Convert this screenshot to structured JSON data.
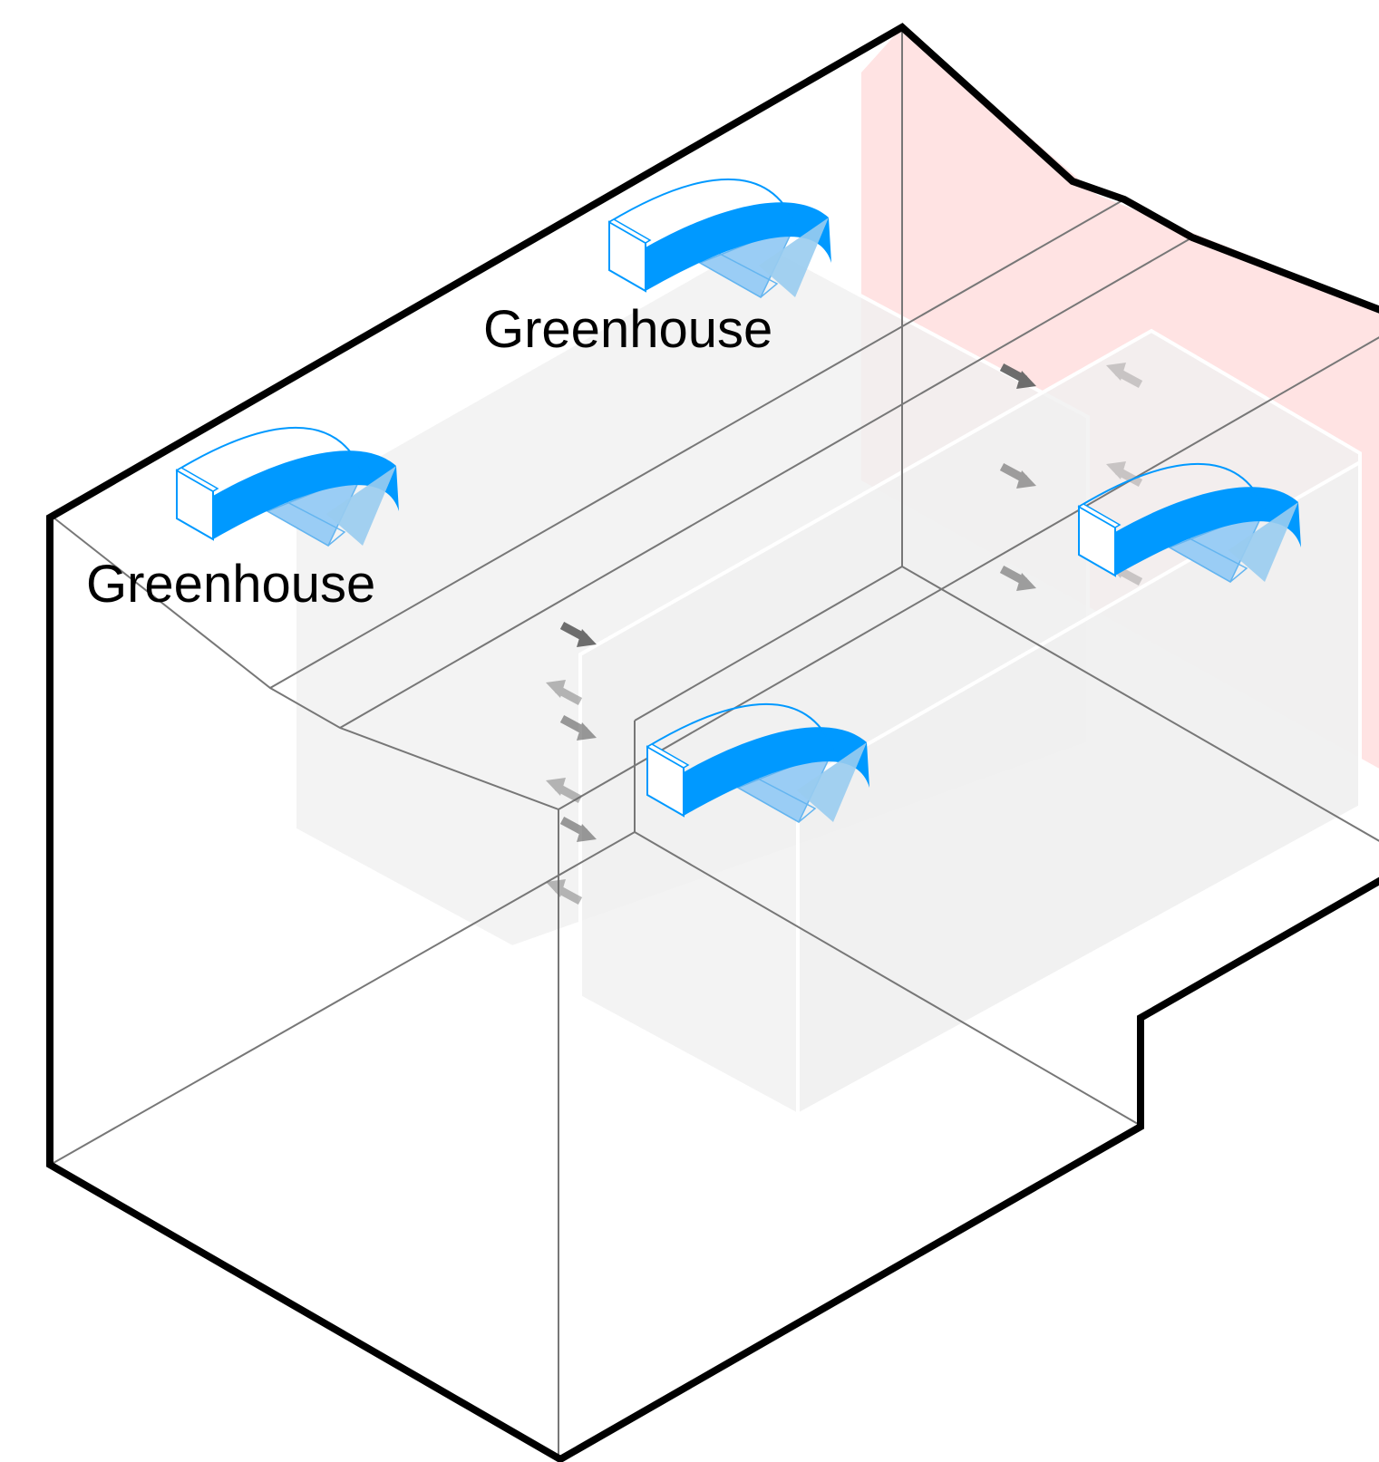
{
  "labels": {
    "greenhouse_upper": "Greenhouse",
    "greenhouse_lower": "Greenhouse"
  },
  "colors": {
    "outline": "#000000",
    "thin_line": "#777777",
    "airflow_arrow": "#0099ff",
    "airflow_arrow_light": "#99ccf0",
    "volume_fill": "#f3f3f3",
    "heated_zone": "#ffe3e3",
    "exchange_arrow": "#666666"
  },
  "icons": {
    "airflow": "curved-airflow-arrow-icon",
    "exchange": "small-exchange-arrow-icon"
  }
}
